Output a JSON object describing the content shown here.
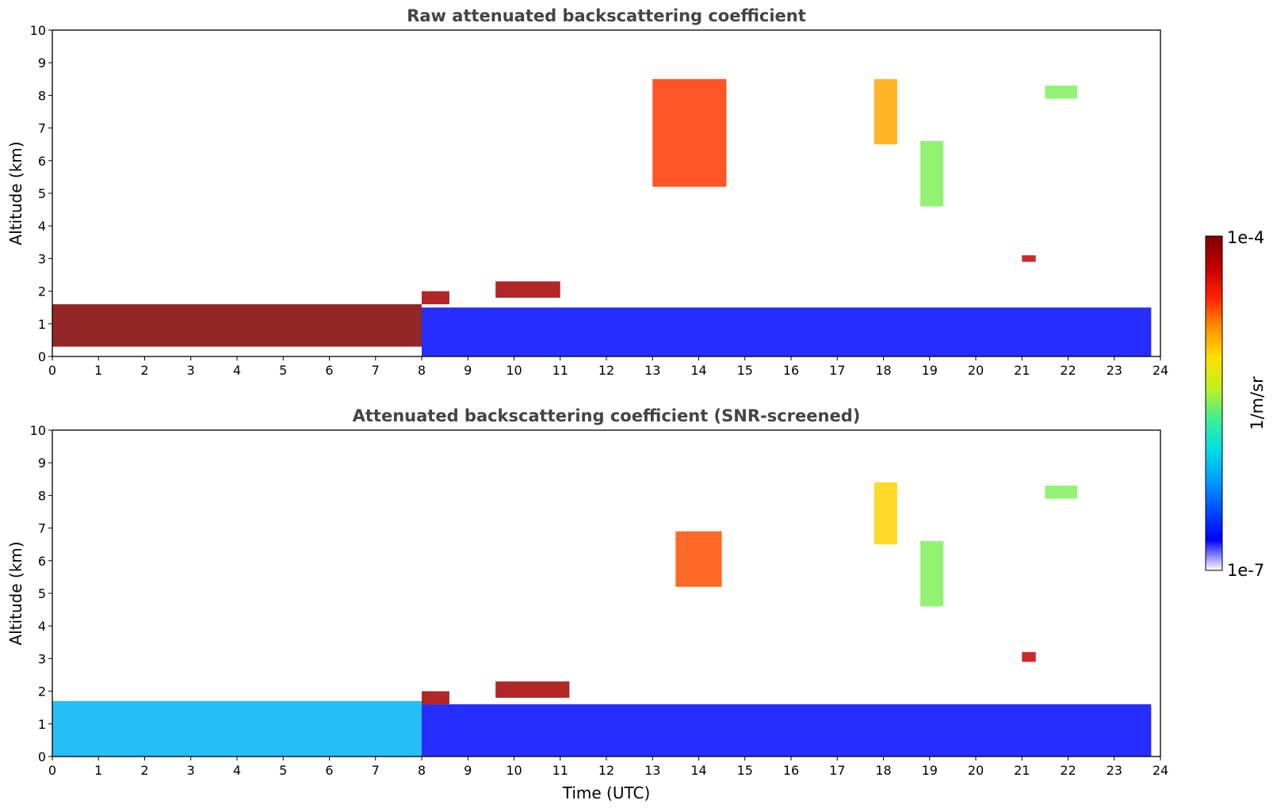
{
  "chart_data": {
    "type": "heatmap",
    "figure": {
      "colorbar": {
        "label": "1/m/sr",
        "tick_labels": [
          "1e-4",
          "1e-7"
        ],
        "range": [
          "1e-7",
          "1e-4"
        ],
        "scale": "log",
        "colormap": "jet",
        "colors": [
          "#ffffff",
          "#0000ff",
          "#0050ff",
          "#00a0ff",
          "#00e0e0",
          "#40f090",
          "#c0f020",
          "#ffe000",
          "#ff9000",
          "#ff2000",
          "#c00000",
          "#800000"
        ]
      },
      "xlabel": "Time (UTC)"
    },
    "panels": [
      {
        "title": "Raw attenuated backscattering coefficient",
        "ylabel": "Altitude (km)",
        "xlim": [
          0,
          24
        ],
        "ylim": [
          0,
          10
        ],
        "xticks": [
          "0",
          "1",
          "2",
          "3",
          "4",
          "5",
          "6",
          "7",
          "8",
          "9",
          "10",
          "11",
          "12",
          "13",
          "14",
          "15",
          "16",
          "17",
          "18",
          "19",
          "20",
          "21",
          "22",
          "23",
          "24"
        ],
        "yticks": [
          "0",
          "1",
          "2",
          "3",
          "4",
          "5",
          "6",
          "7",
          "8",
          "9",
          "10"
        ],
        "features": [
          {
            "x": [
              0.0,
              8.0
            ],
            "y": [
              0.3,
              1.6
            ],
            "level": 1.0
          },
          {
            "x": [
              8.0,
              23.8
            ],
            "y": [
              0.0,
              1.5
            ],
            "level": 0.1
          },
          {
            "x": [
              8.0,
              8.6
            ],
            "y": [
              1.6,
              2.0
            ],
            "level": 0.95
          },
          {
            "x": [
              9.6,
              11.0
            ],
            "y": [
              1.8,
              2.3
            ],
            "level": 0.95
          },
          {
            "x": [
              13.0,
              14.6
            ],
            "y": [
              5.2,
              8.5
            ],
            "level": 0.8
          },
          {
            "x": [
              17.8,
              18.3
            ],
            "y": [
              6.5,
              8.5
            ],
            "level": 0.7
          },
          {
            "x": [
              18.8,
              19.3
            ],
            "y": [
              4.6,
              6.6
            ],
            "level": 0.5
          },
          {
            "x": [
              21.0,
              21.3
            ],
            "y": [
              2.9,
              3.1
            ],
            "level": 0.9
          },
          {
            "x": [
              21.5,
              22.2
            ],
            "y": [
              7.9,
              8.3
            ],
            "level": 0.5
          }
        ]
      },
      {
        "title": "Attenuated backscattering coefficient (SNR-screened)",
        "ylabel": "Altitude (km)",
        "xlim": [
          0,
          24
        ],
        "ylim": [
          0,
          10
        ],
        "xticks": [
          "0",
          "1",
          "2",
          "3",
          "4",
          "5",
          "6",
          "7",
          "8",
          "9",
          "10",
          "11",
          "12",
          "13",
          "14",
          "15",
          "16",
          "17",
          "18",
          "19",
          "20",
          "21",
          "22",
          "23",
          "24"
        ],
        "yticks": [
          "0",
          "1",
          "2",
          "3",
          "4",
          "5",
          "6",
          "7",
          "8",
          "9",
          "10"
        ],
        "features": [
          {
            "x": [
              0.0,
              8.0
            ],
            "y": [
              0.0,
              1.7
            ],
            "level": 0.3
          },
          {
            "x": [
              8.0,
              23.8
            ],
            "y": [
              0.0,
              1.6
            ],
            "level": 0.1
          },
          {
            "x": [
              8.0,
              8.6
            ],
            "y": [
              1.6,
              2.0
            ],
            "level": 0.95
          },
          {
            "x": [
              9.6,
              11.2
            ],
            "y": [
              1.8,
              2.3
            ],
            "level": 0.95
          },
          {
            "x": [
              13.5,
              14.5
            ],
            "y": [
              5.2,
              6.9
            ],
            "level": 0.78
          },
          {
            "x": [
              17.8,
              18.3
            ],
            "y": [
              6.5,
              8.4
            ],
            "level": 0.65
          },
          {
            "x": [
              18.8,
              19.3
            ],
            "y": [
              4.6,
              6.6
            ],
            "level": 0.5
          },
          {
            "x": [
              21.0,
              21.3
            ],
            "y": [
              2.9,
              3.2
            ],
            "level": 0.9
          },
          {
            "x": [
              21.5,
              22.2
            ],
            "y": [
              7.9,
              8.3
            ],
            "level": 0.5
          }
        ]
      }
    ]
  }
}
